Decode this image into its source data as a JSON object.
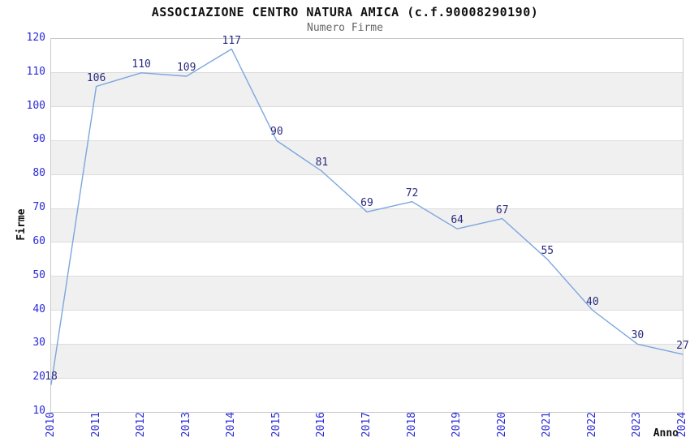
{
  "header": {
    "title": "ASSOCIAZIONE CENTRO NATURA AMICA (c.f.90008290190)",
    "subtitle": "Numero Firme"
  },
  "chart_data": {
    "type": "line",
    "title": "ASSOCIAZIONE CENTRO NATURA AMICA (c.f.90008290190)",
    "subtitle": "Numero Firme",
    "xlabel": "Anno",
    "ylabel": "Firme",
    "categories": [
      "2010",
      "2011",
      "2012",
      "2013",
      "2014",
      "2015",
      "2016",
      "2017",
      "2018",
      "2019",
      "2020",
      "2021",
      "2022",
      "2023",
      "2024"
    ],
    "values": [
      18,
      106,
      110,
      109,
      117,
      90,
      81,
      69,
      72,
      64,
      67,
      55,
      40,
      30,
      27
    ],
    "ylim": [
      10,
      120
    ],
    "ytick_step": 10,
    "grid": true,
    "legend": false,
    "banded_background": true,
    "colors": {
      "line": "#7ca6de",
      "tick_label": "#2b2bd5",
      "data_label": "#2a2a80",
      "band": "#f0f0f0",
      "gridline": "#dcdcdc",
      "plot_border": "#c9c9c9",
      "title": "#111111",
      "subtitle": "#666666",
      "axis_title": "#111111"
    }
  }
}
